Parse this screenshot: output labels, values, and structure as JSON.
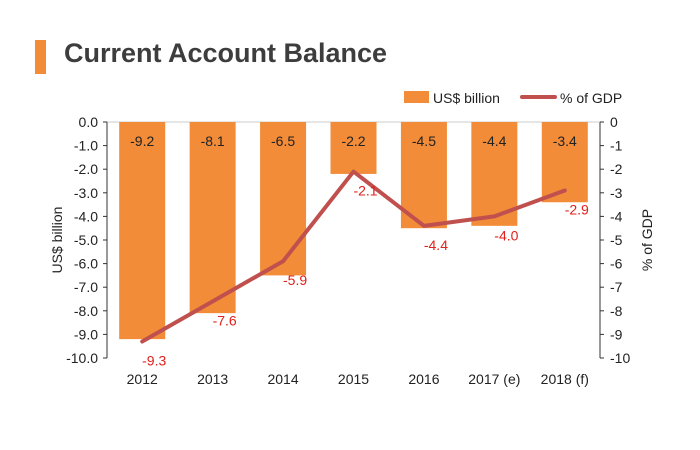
{
  "title": "Current Account Balance",
  "colors": {
    "accent": "#F28C38",
    "bar": "#F28C38",
    "line": "#C0504D",
    "line_label": "#E0201B",
    "title_text": "#3d3d3d"
  },
  "chart_data": {
    "type": "bar",
    "title": "Current Account Balance",
    "categories": [
      "2012",
      "2013",
      "2014",
      "2015",
      "2016",
      "2017 (e)",
      "2018 (f)"
    ],
    "series": [
      {
        "name": "US$ billion",
        "type": "bar",
        "axis": "left",
        "values": [
          -9.2,
          -8.1,
          -6.5,
          -2.2,
          -4.5,
          -4.4,
          -3.4
        ],
        "labels": [
          "-9.2",
          "-8.1",
          "-6.5",
          "-2.2",
          "-4.5",
          "-4.4",
          "-3.4"
        ]
      },
      {
        "name": "% of GDP",
        "type": "line",
        "axis": "right",
        "values": [
          -9.3,
          -7.6,
          -5.9,
          -2.1,
          -4.4,
          -4.0,
          -2.9
        ],
        "labels": [
          "-9.3",
          "-7.6",
          "-5.9",
          "-2.1",
          "-4.4",
          "-4.0",
          "-2.9"
        ]
      }
    ],
    "ylabel": "US$ billion",
    "y2label": "% of GDP",
    "ylim": [
      -10,
      0
    ],
    "y2lim": [
      -10,
      0
    ],
    "yticks": [
      "0.0",
      "-1.0",
      "-2.0",
      "-3.0",
      "-4.0",
      "-5.0",
      "-6.0",
      "-7.0",
      "-8.0",
      "-9.0",
      "-10.0"
    ],
    "y2ticks": [
      "0",
      "-1",
      "-2",
      "-3",
      "-4",
      "-5",
      "-6",
      "-7",
      "-8",
      "-9",
      "-10"
    ],
    "legend": [
      "US$ billion",
      "% of GDP"
    ],
    "legend_position": "top-right",
    "grid": false
  }
}
